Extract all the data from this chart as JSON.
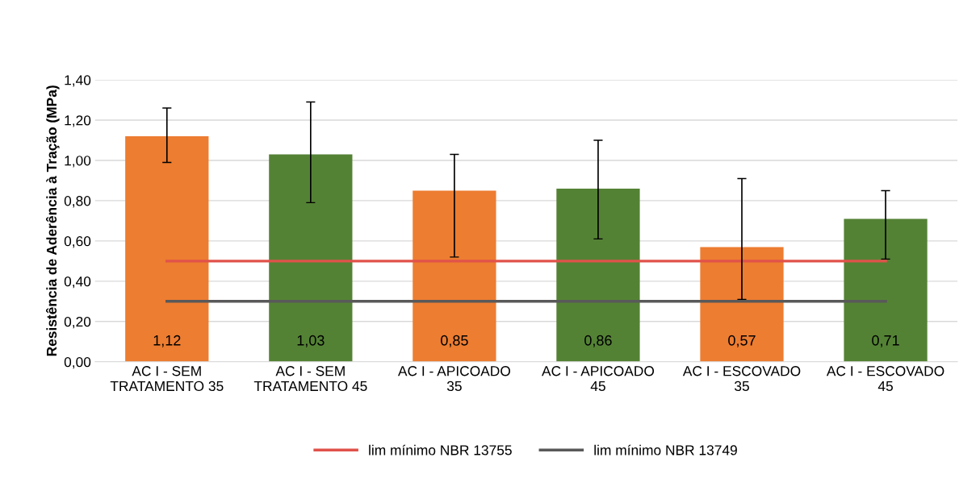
{
  "chart_data": {
    "type": "bar",
    "ylabel": "Resistência de Aderência à Tração (MPa)",
    "categories": [
      "AC I - SEM TRATAMENTO 35",
      "AC I - SEM TRATAMENTO 45",
      "AC I - APICOADO 35",
      "AC I - APICOADO 45",
      "AC I - ESCOVADO 35",
      "AC I - ESCOVADO 45"
    ],
    "series": [
      {
        "colors": [
          "#ed7d31",
          "#548235",
          "#ed7d31",
          "#548235",
          "#ed7d31",
          "#548235"
        ],
        "values": [
          1.12,
          1.03,
          0.85,
          0.86,
          0.57,
          0.71
        ],
        "value_labels": [
          "1,12",
          "1,03",
          "0,85",
          "0,86",
          "0,57",
          "0,71"
        ],
        "errors": [
          [
            0.99,
            1.26
          ],
          [
            0.79,
            1.29
          ],
          [
            0.52,
            1.03
          ],
          [
            0.61,
            1.1
          ],
          [
            0.31,
            0.91
          ],
          [
            0.51,
            0.85
          ]
        ]
      },
      {
        "type": "line",
        "name": "lim mínimo NBR 13755",
        "color": "#e0524a",
        "values": [
          0.5,
          0.5,
          0.5,
          0.5,
          0.5,
          0.5
        ]
      },
      {
        "type": "line",
        "name": "lim mínimo NBR 13749",
        "color": "#595959",
        "values": [
          0.3,
          0.3,
          0.3,
          0.3,
          0.3,
          0.3
        ]
      }
    ],
    "ylim": [
      0,
      1.4
    ],
    "yticks": [
      {
        "value": 0,
        "label": "0,00"
      },
      {
        "value": 0.2,
        "label": "0,20"
      },
      {
        "value": 0.4,
        "label": "0,40"
      },
      {
        "value": 0.6,
        "label": "0,60"
      },
      {
        "value": 0.8,
        "label": "0,80"
      },
      {
        "value": 1.0,
        "label": "1,00"
      },
      {
        "value": 1.2,
        "label": "1,20"
      },
      {
        "value": 1.4,
        "label": "1,40"
      }
    ],
    "grid": "y",
    "legend": "bottom",
    "marker": "none",
    "line_style": "solid"
  }
}
